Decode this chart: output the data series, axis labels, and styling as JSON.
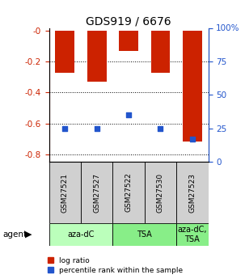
{
  "title": "GDS919 / 6676",
  "samples": [
    "GSM27521",
    "GSM27527",
    "GSM27522",
    "GSM27530",
    "GSM27523"
  ],
  "log_ratios": [
    -0.27,
    -0.33,
    -0.13,
    -0.27,
    -0.72
  ],
  "percentile_ranks": [
    25.0,
    25.0,
    35.0,
    25.0,
    17.0
  ],
  "ylim_left": [
    -0.85,
    0.02
  ],
  "ylim_right": [
    0,
    100
  ],
  "yticks_left": [
    0.0,
    -0.2,
    -0.4,
    -0.6,
    -0.8
  ],
  "ytick_labels_left": [
    "-0",
    "-0.2",
    "-0.4",
    "-0.6",
    "-0.8"
  ],
  "yticks_right": [
    0,
    25,
    50,
    75,
    100
  ],
  "ytick_labels_right": [
    "0",
    "25",
    "50",
    "75",
    "100%"
  ],
  "bar_color": "#cc2200",
  "blue_color": "#2255cc",
  "bar_width": 0.6,
  "sample_box_color": "#d0d0d0",
  "group_boundaries": [
    {
      "start": 0,
      "end": 1,
      "label": "aza-dC",
      "color": "#bbffbb"
    },
    {
      "start": 2,
      "end": 3,
      "label": "TSA",
      "color": "#88ee88"
    },
    {
      "start": 4,
      "end": 4,
      "label": "aza-dC,\nTSA",
      "color": "#88ee88"
    }
  ],
  "legend_items": [
    {
      "label": "log ratio",
      "color": "#cc2200"
    },
    {
      "label": "percentile rank within the sample",
      "color": "#2255cc"
    }
  ]
}
